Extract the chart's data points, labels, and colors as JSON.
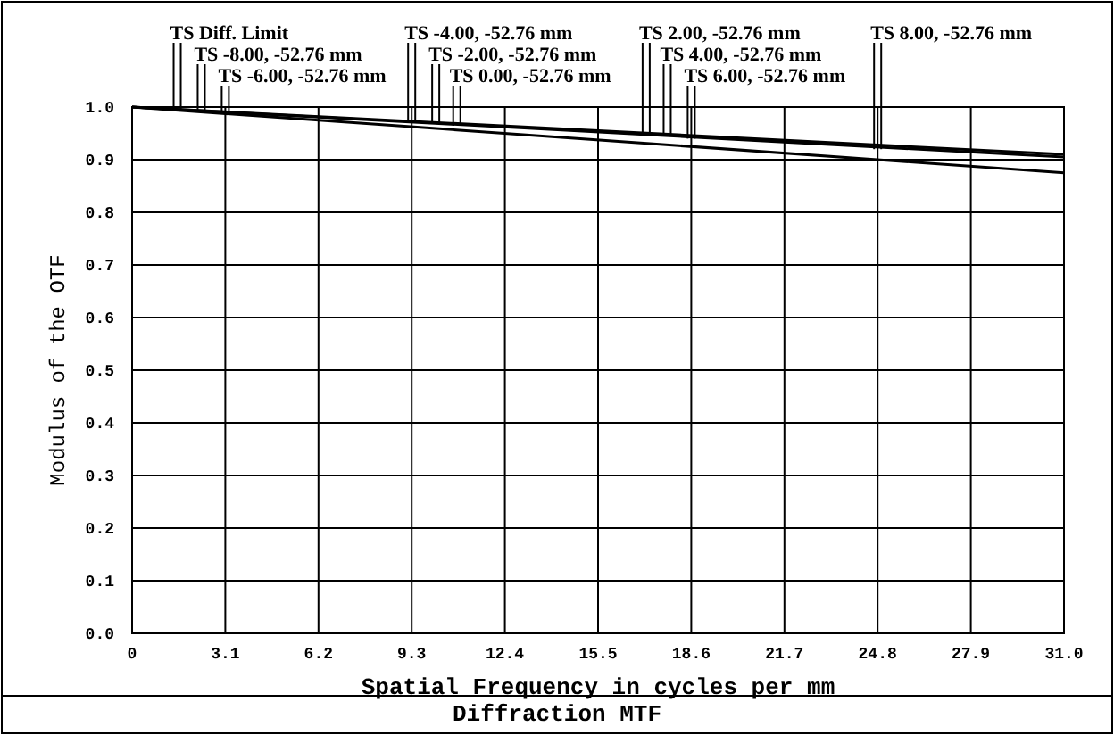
{
  "chart_data": {
    "type": "line",
    "title": "Diffraction MTF",
    "xlabel": "Spatial Frequency in cycles per mm",
    "ylabel": "Modulus of the OTF",
    "x": [
      0,
      31
    ],
    "series": [
      {
        "color": "#000000",
        "values": [
          1.0,
          0.91
        ]
      },
      {
        "color": "#000000",
        "values": [
          1.0,
          0.905
        ]
      },
      {
        "color": "#000000",
        "values": [
          1.0,
          0.875
        ]
      }
    ],
    "annotations": [
      {
        "text": "TS Diff. Limit",
        "x": 1.5,
        "y": 0.995
      },
      {
        "text": "TS -8.00, -52.76 mm",
        "x": 2.3,
        "y": 0.993
      },
      {
        "text": "TS -6.00, -52.76 mm",
        "x": 3.1,
        "y": 0.99
      },
      {
        "text": "TS -4.00, -52.76 mm",
        "x": 9.3,
        "y": 0.97
      },
      {
        "text": "TS -2.00, -52.76 mm",
        "x": 10.1,
        "y": 0.968
      },
      {
        "text": "TS 0.00, -52.76 mm",
        "x": 10.8,
        "y": 0.965
      },
      {
        "text": "TS 2.00, -52.76 mm",
        "x": 17.1,
        "y": 0.95
      },
      {
        "text": "TS 4.00, -52.76 mm",
        "x": 17.8,
        "y": 0.945
      },
      {
        "text": "TS 6.00, -52.76 mm",
        "x": 18.6,
        "y": 0.94
      },
      {
        "text": "TS 8.00, -52.76 mm",
        "x": 24.8,
        "y": 0.92
      }
    ],
    "xlim": [
      0,
      31
    ],
    "xticks": [
      0,
      3.1,
      6.2,
      9.3,
      12.4,
      15.5,
      18.6,
      21.7,
      24.8,
      27.9,
      {
        "value": 31,
        "label": "31.0"
      }
    ],
    "ylim": [
      0,
      1
    ],
    "yticks": [
      {
        "value": 0,
        "label": "0.0"
      },
      0.1,
      0.2,
      0.3,
      0.4,
      0.5,
      0.6,
      0.7,
      0.8,
      0.9,
      {
        "value": 1,
        "label": "1.0"
      }
    ],
    "grid": true,
    "line_style": "solid",
    "marker": "none"
  }
}
